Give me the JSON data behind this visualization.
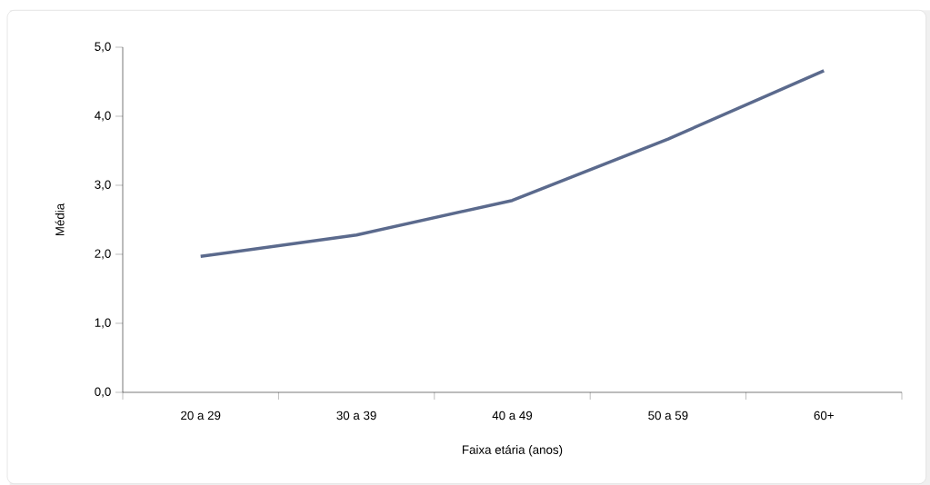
{
  "chart_data": {
    "type": "line",
    "xlabel": "Faixa etária (anos)",
    "ylabel": "Média",
    "categories": [
      "20 a 29",
      "30 a 39",
      "40 a 49",
      "50 a 59",
      "60+"
    ],
    "series": [
      {
        "color": "#5b6a8d",
        "values": [
          1.97,
          2.28,
          2.78,
          3.67,
          4.66
        ]
      }
    ],
    "ylim": [
      0,
      5
    ],
    "yticks": [
      {
        "value": 0,
        "label": "0,0"
      },
      {
        "value": 1,
        "label": "1,0"
      },
      {
        "value": 2,
        "label": "2,0"
      },
      {
        "value": 3,
        "label": "3,0"
      },
      {
        "value": 4,
        "label": "4,0"
      },
      {
        "value": 5,
        "label": "5,0"
      }
    ],
    "grid": false,
    "marker": "none",
    "line_style": "solid"
  }
}
